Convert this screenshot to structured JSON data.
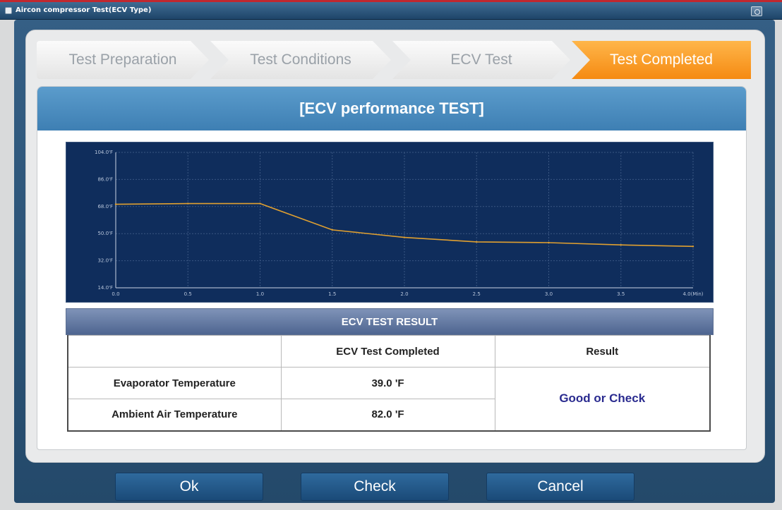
{
  "window": {
    "title": "Aircon compressor Test(ECV Type)"
  },
  "steps": [
    {
      "label": "Test Preparation",
      "active": false
    },
    {
      "label": "Test Conditions",
      "active": false
    },
    {
      "label": "ECV Test",
      "active": false
    },
    {
      "label": "Test Completed",
      "active": true
    }
  ],
  "panel": {
    "title": "[ECV performance TEST]"
  },
  "chart_data": {
    "type": "line",
    "x": [
      0.0,
      0.5,
      1.0,
      1.5,
      2.0,
      2.5,
      3.0,
      3.5,
      4.0
    ],
    "series": [
      {
        "values": [
          69.5,
          70.0,
          70.0,
          52.5,
          47.5,
          44.5,
          44.0,
          42.5,
          41.5
        ]
      }
    ],
    "xlim": [
      0.0,
      4.0
    ],
    "ylim": [
      14.0,
      104.0
    ],
    "y_ticks": [
      "104.0'F",
      "86.0'F",
      "68.0'F",
      "50.0'F",
      "32.0'F",
      "14.0'F"
    ],
    "x_ticks": [
      "0.0",
      "0.5",
      "1.0",
      "1.5",
      "2.0",
      "2.5",
      "3.0",
      "3.5",
      "4.0(Min)"
    ],
    "grid": true,
    "line_color": "#e0a030",
    "background": "#0f2d5c"
  },
  "result": {
    "title": "ECV TEST RESULT",
    "columns": [
      "",
      "ECV Test Completed",
      "Result"
    ],
    "rows": [
      {
        "label": "Evaporator Temperature",
        "value": "39.0 'F"
      },
      {
        "label": "Ambient Air Temperature",
        "value": "82.0 'F"
      }
    ],
    "verdict": "Good or Check"
  },
  "buttons": {
    "ok": "Ok",
    "check": "Check",
    "cancel": "Cancel"
  },
  "colors": {
    "accent": "#f58a12",
    "header": "#4a8cc0",
    "button": "#1f5486"
  }
}
